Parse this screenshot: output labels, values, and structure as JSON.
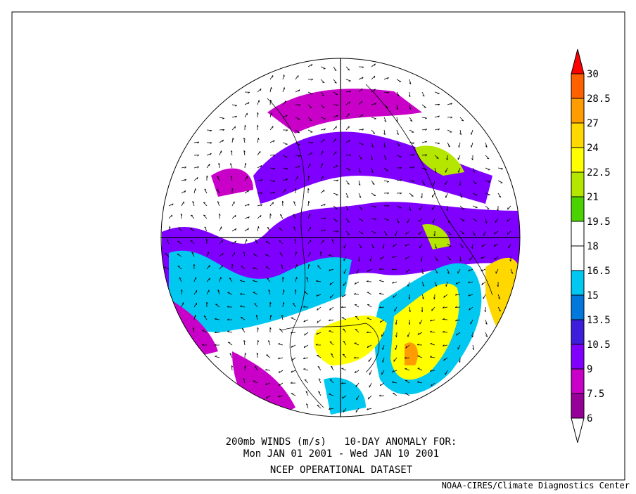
{
  "caption": {
    "line1": "200mb WINDS (m/s)   10-DAY ANOMALY FOR:",
    "line2": "Mon JAN 01 2001 - Wed JAN 10 2001",
    "line3": "NCEP OPERATIONAL DATASET"
  },
  "credit": "NOAA-CIRES/Climate Diagnostics Center",
  "legend": {
    "labels": [
      30,
      28.5,
      27,
      24,
      22.5,
      21,
      19.5,
      18,
      16.5,
      15,
      13.5,
      10.5,
      9,
      7.5,
      6
    ],
    "colors": [
      "#ff0000",
      "#ff6000",
      "#ff9c00",
      "#ffd800",
      "#ffff00",
      "#b4e600",
      "#4cd200",
      "#ffffff",
      "#ffffff",
      "#00c8f0",
      "#0078dc",
      "#3c1edc",
      "#8000ff",
      "#c800c8",
      "#960096",
      "#ffffff"
    ]
  }
}
